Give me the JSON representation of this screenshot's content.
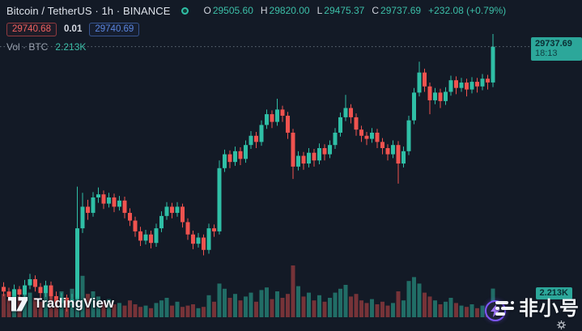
{
  "header": {
    "symbol_title": "Bitcoin / TetherUS · 1h · BINANCE",
    "market_status": "open",
    "ohlc": {
      "o_label": "O",
      "o": "29505.60",
      "h_label": "H",
      "h": "29820.00",
      "l_label": "L",
      "l": "29475.37",
      "c_label": "C",
      "c": "29737.69",
      "change": "+232.08 (+0.79%)"
    },
    "sell_price": "29740.68",
    "spread": "0.01",
    "buy_price": "29740.69",
    "indicator_label": "Vol · BTC",
    "indicator_value": "2.213K"
  },
  "badges": {
    "price": "29737.69",
    "time": "18:13",
    "volume": "2.213K"
  },
  "watermarks": {
    "tradingview": "TradingView",
    "feixiaohao": "非小号"
  },
  "colors": {
    "background": "#131A26",
    "up": "#2FBFA6",
    "down": "#F0534F",
    "up_volume": "rgba(47,191,166,0.5)",
    "down_volume": "rgba(240,83,79,0.45)",
    "price_line": "#8A98A6",
    "badge_bg": "#2CA79A",
    "badge_text": "#0A2E33"
  },
  "chart_data": {
    "type": "candlestick",
    "symbol": "BTCUSDT",
    "exchange": "BINANCE",
    "interval": "1h",
    "legend_position": "top-left",
    "grid": false,
    "y_axis_visible": false,
    "price_line_value": 29737.69,
    "last_bar": {
      "open": 29505.6,
      "high": 29820.0,
      "low": 29475.37,
      "close": 29737.69,
      "change": 232.08,
      "change_pct": 0.79,
      "time": "18:13"
    },
    "current_volume_btc_k": 2.213,
    "approx_price_range": [
      28020,
      29820
    ],
    "volume_unit": "K BTC",
    "candles": [
      [
        28180,
        28210,
        28120,
        28150
      ],
      [
        28150,
        28175,
        28085,
        28115
      ],
      [
        28115,
        28195,
        28095,
        28165
      ],
      [
        28165,
        28185,
        28100,
        28130
      ],
      [
        28130,
        28225,
        28110,
        28190
      ],
      [
        28190,
        28265,
        28165,
        28230
      ],
      [
        28230,
        28255,
        28150,
        28180
      ],
      [
        28180,
        28205,
        28105,
        28140
      ],
      [
        28140,
        28220,
        28115,
        28190
      ],
      [
        28190,
        28215,
        28090,
        28120
      ],
      [
        28120,
        28150,
        28040,
        28075
      ],
      [
        28075,
        28140,
        28050,
        28110
      ],
      [
        28110,
        28130,
        28020,
        28060
      ],
      [
        28060,
        28135,
        28035,
        28100
      ],
      [
        28100,
        28830,
        28060,
        28560
      ],
      [
        28560,
        28790,
        28530,
        28700
      ],
      [
        28700,
        28745,
        28615,
        28660
      ],
      [
        28660,
        28795,
        28635,
        28760
      ],
      [
        28760,
        28825,
        28725,
        28780
      ],
      [
        28780,
        28805,
        28685,
        28720
      ],
      [
        28720,
        28790,
        28695,
        28760
      ],
      [
        28760,
        28785,
        28665,
        28700
      ],
      [
        28700,
        28770,
        28675,
        28740
      ],
      [
        28740,
        28765,
        28625,
        28660
      ],
      [
        28660,
        28690,
        28575,
        28610
      ],
      [
        28610,
        28635,
        28505,
        28540
      ],
      [
        28540,
        28570,
        28445,
        28480
      ],
      [
        28480,
        28550,
        28455,
        28520
      ],
      [
        28520,
        28545,
        28430,
        28465
      ],
      [
        28465,
        28590,
        28440,
        28560
      ],
      [
        28560,
        28670,
        28535,
        28640
      ],
      [
        28640,
        28730,
        28615,
        28700
      ],
      [
        28700,
        28725,
        28625,
        28660
      ],
      [
        28660,
        28730,
        28635,
        28700
      ],
      [
        28700,
        28720,
        28565,
        28600
      ],
      [
        28600,
        28625,
        28485,
        28520
      ],
      [
        28520,
        28545,
        28425,
        28460
      ],
      [
        28460,
        28530,
        28435,
        28500
      ],
      [
        28500,
        28520,
        28385,
        28420
      ],
      [
        28420,
        28590,
        28395,
        28560
      ],
      [
        28560,
        28585,
        28505,
        28540
      ],
      [
        28540,
        29000,
        28520,
        28950
      ],
      [
        28950,
        29070,
        28925,
        29040
      ],
      [
        29040,
        29065,
        28950,
        28990
      ],
      [
        28990,
        29090,
        28965,
        29060
      ],
      [
        29060,
        29085,
        28970,
        29010
      ],
      [
        29010,
        29130,
        28985,
        29100
      ],
      [
        29100,
        29190,
        29075,
        29160
      ],
      [
        29160,
        29185,
        29080,
        29120
      ],
      [
        29120,
        29260,
        29095,
        29230
      ],
      [
        29230,
        29330,
        29205,
        29300
      ],
      [
        29300,
        29325,
        29210,
        29250
      ],
      [
        29250,
        29400,
        29225,
        29330
      ],
      [
        29330,
        29355,
        29250,
        29290
      ],
      [
        29290,
        29315,
        29140,
        29180
      ],
      [
        29180,
        29205,
        28880,
        28960
      ],
      [
        28960,
        29060,
        28935,
        29030
      ],
      [
        29030,
        29055,
        28940,
        28980
      ],
      [
        28980,
        29080,
        28955,
        29050
      ],
      [
        29050,
        29075,
        28960,
        29000
      ],
      [
        29000,
        29110,
        28975,
        29080
      ],
      [
        29080,
        29105,
        29000,
        29040
      ],
      [
        29040,
        29130,
        29015,
        29100
      ],
      [
        29100,
        29210,
        29075,
        29180
      ],
      [
        29180,
        29310,
        29155,
        29280
      ],
      [
        29280,
        29425,
        29255,
        29340
      ],
      [
        29340,
        29365,
        29240,
        29280
      ],
      [
        29280,
        29305,
        29160,
        29200
      ],
      [
        29200,
        29225,
        29120,
        29160
      ],
      [
        29160,
        29185,
        29100,
        29140
      ],
      [
        29140,
        29210,
        29115,
        29180
      ],
      [
        29180,
        29205,
        29080,
        29120
      ],
      [
        29120,
        29145,
        29040,
        29080
      ],
      [
        29080,
        29105,
        29000,
        29040
      ],
      [
        29040,
        29130,
        29015,
        29100
      ],
      [
        29100,
        29125,
        28850,
        28980
      ],
      [
        28980,
        29090,
        28955,
        29060
      ],
      [
        29060,
        29290,
        29035,
        29260
      ],
      [
        29260,
        29470,
        29235,
        29440
      ],
      [
        29440,
        29640,
        29415,
        29570
      ],
      [
        29570,
        29595,
        29445,
        29480
      ],
      [
        29480,
        29505,
        29300,
        29390
      ],
      [
        29390,
        29470,
        29365,
        29440
      ],
      [
        29440,
        29465,
        29340,
        29385
      ],
      [
        29385,
        29475,
        29360,
        29445
      ],
      [
        29445,
        29550,
        29420,
        29520
      ],
      [
        29520,
        29545,
        29430,
        29470
      ],
      [
        29470,
        29535,
        29445,
        29505
      ],
      [
        29505,
        29530,
        29415,
        29460
      ],
      [
        29460,
        29540,
        29435,
        29510
      ],
      [
        29510,
        29535,
        29440,
        29480
      ],
      [
        29480,
        29560,
        29455,
        29530
      ],
      [
        29530,
        29555,
        29460,
        29505.6
      ],
      [
        29505.6,
        29820,
        29475.37,
        29737.69
      ]
    ],
    "volumes_k": [
      1.8,
      1.4,
      2.1,
      1.6,
      2.3,
      1.9,
      1.5,
      1.2,
      2.4,
      1.7,
      1.4,
      2.0,
      1.3,
      2.2,
      3.8,
      3.2,
      1.8,
      2.0,
      1.6,
      1.2,
      1.4,
      1.0,
      1.1,
      0.9,
      1.3,
      1.0,
      0.8,
      0.9,
      0.7,
      1.1,
      1.3,
      1.5,
      0.9,
      1.2,
      0.8,
      0.9,
      1.0,
      0.7,
      0.8,
      1.7,
      1.2,
      2.6,
      2.2,
      1.5,
      1.8,
      1.3,
      1.6,
      1.9,
      1.2,
      2.1,
      2.3,
      1.4,
      2.0,
      1.5,
      1.8,
      4.0,
      2.4,
      1.6,
      1.9,
      1.3,
      1.7,
      1.2,
      1.5,
      1.9,
      2.2,
      2.5,
      1.6,
      1.8,
      1.3,
      1.1,
      1.4,
      1.0,
      1.2,
      0.9,
      1.1,
      2.0,
      1.3,
      2.8,
      3.1,
      2.6,
      1.9,
      1.6,
      1.3,
      1.0,
      1.2,
      1.5,
      1.1,
      0.9,
      0.8,
      1.0,
      0.7,
      0.9,
      0.8,
      2.213
    ]
  }
}
